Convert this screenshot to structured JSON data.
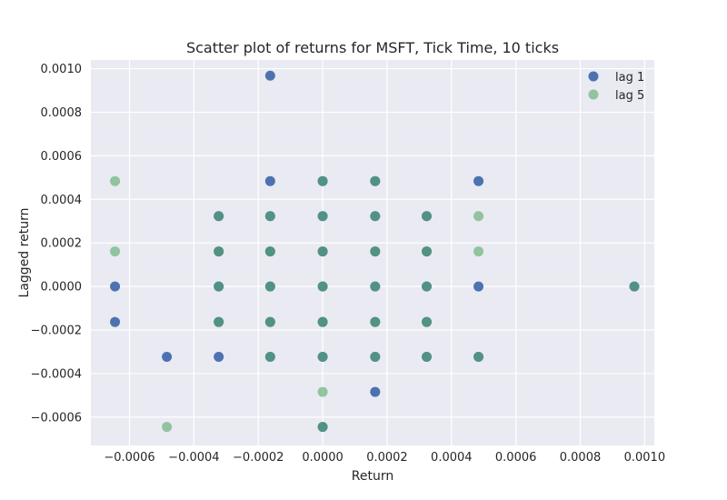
{
  "chart_data": {
    "type": "scatter",
    "title": "Scatter plot of returns for MSFT, Tick Time, 10 ticks",
    "xlabel": "Return",
    "ylabel": "Lagged return",
    "xlim": [
      -0.00072,
      0.00103
    ],
    "ylim": [
      -0.00073,
      0.00104
    ],
    "xticks": [
      -0.0006,
      -0.0004,
      -0.0002,
      0.0,
      0.0002,
      0.0004,
      0.0006,
      0.0008,
      0.001
    ],
    "xtick_labels": [
      "−0.0006",
      "−0.0004",
      "−0.0002",
      "0.0000",
      "0.0002",
      "0.0004",
      "0.0006",
      "0.0008",
      "0.0010"
    ],
    "yticks": [
      -0.0006,
      -0.0004,
      -0.0002,
      0.0,
      0.0002,
      0.0004,
      0.0006,
      0.0008,
      0.001
    ],
    "ytick_labels": [
      "−0.0006",
      "−0.0004",
      "−0.0002",
      "0.0000",
      "0.0002",
      "0.0004",
      "0.0006",
      "0.0008",
      "0.0010"
    ],
    "grid": true,
    "legend_position": "top-right",
    "background": "#eaeaf2",
    "series": [
      {
        "name": "lag 1",
        "color": "#4c72b0",
        "alpha": 1.0,
        "points": [
          [
            -0.000163,
            0.000968
          ],
          [
            -0.000163,
            0.000484
          ],
          [
            0.000163,
            0.000484
          ],
          [
            0.000484,
            0.000484
          ],
          [
            0.0,
            0.000484
          ],
          [
            -0.000323,
            0.000323
          ],
          [
            -0.000163,
            0.000323
          ],
          [
            0.0,
            0.000323
          ],
          [
            0.000163,
            0.000323
          ],
          [
            0.000323,
            0.000323
          ],
          [
            -0.000323,
            0.000161
          ],
          [
            -0.000163,
            0.000161
          ],
          [
            0.0,
            0.000161
          ],
          [
            0.000163,
            0.000161
          ],
          [
            0.000323,
            0.000161
          ],
          [
            -0.000645,
            0.0
          ],
          [
            -0.000323,
            0.0
          ],
          [
            -0.000163,
            0.0
          ],
          [
            0.0,
            0.0
          ],
          [
            0.000163,
            0.0
          ],
          [
            0.000323,
            0.0
          ],
          [
            0.000484,
            0.0
          ],
          [
            0.000968,
            0.0
          ],
          [
            -0.000645,
            -0.000163
          ],
          [
            -0.000323,
            -0.000163
          ],
          [
            -0.000163,
            -0.000163
          ],
          [
            0.0,
            -0.000163
          ],
          [
            0.000163,
            -0.000163
          ],
          [
            0.000323,
            -0.000163
          ],
          [
            -0.000484,
            -0.000323
          ],
          [
            -0.000323,
            -0.000323
          ],
          [
            -0.000163,
            -0.000323
          ],
          [
            0.0,
            -0.000323
          ],
          [
            0.000163,
            -0.000323
          ],
          [
            0.000323,
            -0.000323
          ],
          [
            0.000484,
            -0.000323
          ],
          [
            0.000163,
            -0.000484
          ],
          [
            0.0,
            -0.000645
          ]
        ]
      },
      {
        "name": "lag 5",
        "color": "#55a868",
        "alpha": 0.6,
        "points": [
          [
            -0.000645,
            0.000484
          ],
          [
            0.0,
            0.000484
          ],
          [
            0.000163,
            0.000484
          ],
          [
            -0.000323,
            0.000323
          ],
          [
            -0.000163,
            0.000323
          ],
          [
            0.0,
            0.000323
          ],
          [
            0.000163,
            0.000323
          ],
          [
            0.000323,
            0.000323
          ],
          [
            0.000484,
            0.000323
          ],
          [
            -0.000645,
            0.000161
          ],
          [
            -0.000323,
            0.000161
          ],
          [
            -0.000163,
            0.000161
          ],
          [
            0.0,
            0.000161
          ],
          [
            0.000163,
            0.000161
          ],
          [
            0.000323,
            0.000161
          ],
          [
            0.000484,
            0.000161
          ],
          [
            -0.000323,
            0.0
          ],
          [
            -0.000163,
            0.0
          ],
          [
            0.0,
            0.0
          ],
          [
            0.000163,
            0.0
          ],
          [
            0.000323,
            0.0
          ],
          [
            0.000968,
            0.0
          ],
          [
            -0.000323,
            -0.000163
          ],
          [
            -0.000163,
            -0.000163
          ],
          [
            0.0,
            -0.000163
          ],
          [
            0.000163,
            -0.000163
          ],
          [
            0.000323,
            -0.000163
          ],
          [
            -0.000163,
            -0.000323
          ],
          [
            0.0,
            -0.000323
          ],
          [
            0.000163,
            -0.000323
          ],
          [
            0.000323,
            -0.000323
          ],
          [
            0.000484,
            -0.000323
          ],
          [
            0.0,
            -0.000484
          ],
          [
            -0.000484,
            -0.000645
          ],
          [
            0.0,
            -0.000645
          ]
        ]
      }
    ]
  }
}
